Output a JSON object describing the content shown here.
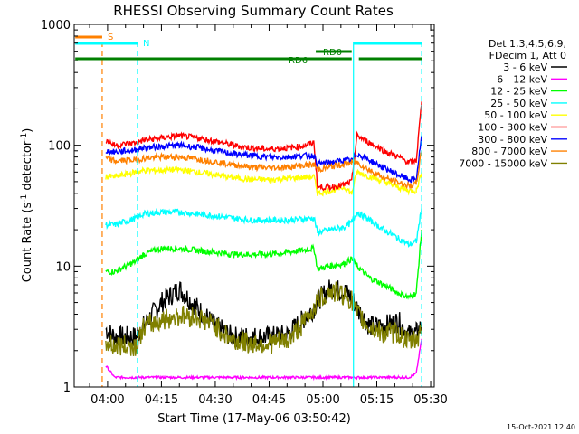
{
  "chart_data": {
    "type": "line",
    "title": "RHESSI Observing Summary Count Rates",
    "xlabel": "Start Time (17-May-06 03:50:42)",
    "ylabel_main": "Count Rate (s",
    "ylabel_sup1": "-1",
    "ylabel_mid": " detector",
    "ylabel_sup2": "-1",
    "ylabel_end": ")",
    "yscale": "log",
    "xlim": [
      "03:50:42",
      "05:31:00"
    ],
    "ylim": [
      1,
      1000
    ],
    "x_ticks": [
      "04:00",
      "04:15",
      "04:30",
      "04:45",
      "05:00",
      "05:15",
      "05:30"
    ],
    "y_ticks": [
      "1",
      "10",
      "100",
      "1000"
    ],
    "legend_title_1": "Det 1,3,4,5,6,9,",
    "legend_title_2": "FDecim 1, Att 0",
    "footer": "15-Oct-2021 12:40",
    "flag_labels": {
      "saa": "S",
      "night": "N",
      "rd0": "RD0",
      "rd6": "RD6"
    },
    "flag_intervals": {
      "saa": [
        "03:51:00",
        "03:58:30"
      ],
      "night": [
        [
          "03:51:00",
          "04:08:20"
        ],
        [
          "05:08:30",
          "05:27:30"
        ]
      ],
      "rd0": [
        "04:58:00",
        "05:08:00"
      ],
      "rd6": [
        [
          "03:51:00",
          "05:08:00"
        ],
        [
          "05:10:00",
          "05:27:30"
        ]
      ]
    },
    "vertical_markers": [
      {
        "time": "03:58:30",
        "color": "#ff8000",
        "style": "dashed"
      },
      {
        "time": "04:08:20",
        "color": "#00ffff",
        "style": "dashed"
      },
      {
        "time": "05:08:30",
        "color": "#00ffff",
        "style": "solid"
      },
      {
        "time": "05:27:30",
        "color": "#00ffff",
        "style": "dashed"
      }
    ],
    "x": [
      "03:59:30",
      "04:02:00",
      "04:08:00",
      "04:10:00",
      "04:15:00",
      "04:20:00",
      "04:25:00",
      "04:30:00",
      "04:35:00",
      "04:40:00",
      "04:45:00",
      "04:50:00",
      "04:54:00",
      "04:57:30",
      "04:58:30",
      "05:02:00",
      "05:06:00",
      "05:08:00",
      "05:09:30",
      "05:13:00",
      "05:17:00",
      "05:21:00",
      "05:24:00",
      "05:26:00",
      "05:27:30"
    ],
    "series": [
      {
        "name": "3 - 6 keV",
        "color": "#000000",
        "values": [
          3,
          2.6,
          2.6,
          3.2,
          5,
          6.5,
          4.5,
          3.2,
          2.6,
          2.6,
          2.6,
          2.7,
          3.5,
          4.5,
          5.2,
          6.5,
          6.2,
          5.5,
          4.5,
          3.2,
          3.2,
          3.5,
          2.7,
          2.8,
          3.2
        ]
      },
      {
        "name": "6 - 12 keV",
        "color": "#ff00ff",
        "values": [
          1.5,
          1.2,
          1.2,
          1.2,
          1.2,
          1.2,
          1.2,
          1.2,
          1.2,
          1.2,
          1.2,
          1.2,
          1.2,
          1.2,
          1.2,
          1.2,
          1.2,
          1.2,
          1.2,
          1.2,
          1.2,
          1.2,
          1.2,
          1.3,
          2.5
        ]
      },
      {
        "name": "12 - 25 keV",
        "color": "#00ff00",
        "values": [
          9,
          9,
          11,
          12.5,
          14,
          14,
          13.5,
          13,
          12.5,
          12.5,
          12.5,
          13,
          13.5,
          14,
          9.5,
          10,
          10.5,
          11.5,
          10,
          8,
          7,
          6,
          5.5,
          6,
          20
        ]
      },
      {
        "name": "25 - 50 keV",
        "color": "#00ffff",
        "values": [
          22,
          22,
          25,
          27,
          28,
          28,
          27,
          26,
          25,
          24,
          24,
          24,
          24.5,
          25,
          19,
          20,
          21,
          23,
          28,
          24,
          20,
          17,
          15,
          16,
          30
        ]
      },
      {
        "name": "50 - 100 keV",
        "color": "#ffff00",
        "values": [
          55,
          55,
          60,
          62,
          62,
          63,
          60,
          57,
          54,
          52,
          52,
          53,
          54,
          55,
          40,
          42,
          45,
          40,
          60,
          55,
          50,
          45,
          42,
          42,
          60
        ]
      },
      {
        "name": "100 - 300 keV",
        "color": "#ff0000",
        "values": [
          110,
          100,
          105,
          110,
          115,
          120,
          115,
          108,
          100,
          95,
          93,
          95,
          98,
          105,
          45,
          45,
          47,
          50,
          120,
          105,
          90,
          80,
          72,
          75,
          230
        ]
      },
      {
        "name": "300 - 800 keV",
        "color": "#0000ff",
        "values": [
          90,
          88,
          92,
          95,
          98,
          100,
          96,
          90,
          85,
          82,
          80,
          80,
          82,
          82,
          70,
          72,
          75,
          75,
          85,
          75,
          65,
          57,
          52,
          52,
          120
        ]
      },
      {
        "name": "800 - 7000 keV",
        "color": "#ff8000",
        "values": [
          78,
          74,
          76,
          78,
          80,
          80,
          77,
          73,
          69,
          66,
          65,
          66,
          68,
          69,
          63,
          66,
          70,
          72,
          72,
          62,
          54,
          49,
          46,
          48,
          90
        ]
      },
      {
        "name": "7000 - 15000 keV",
        "color": "#808000",
        "values": [
          2.3,
          2.2,
          2.2,
          3.1,
          3.6,
          3.9,
          3.8,
          3.2,
          2.4,
          2.3,
          2.3,
          2.4,
          3.2,
          4.5,
          5.2,
          6.2,
          5.8,
          5.2,
          4.0,
          3.1,
          2.8,
          2.8,
          2.3,
          2.5,
          2.9
        ]
      }
    ]
  }
}
